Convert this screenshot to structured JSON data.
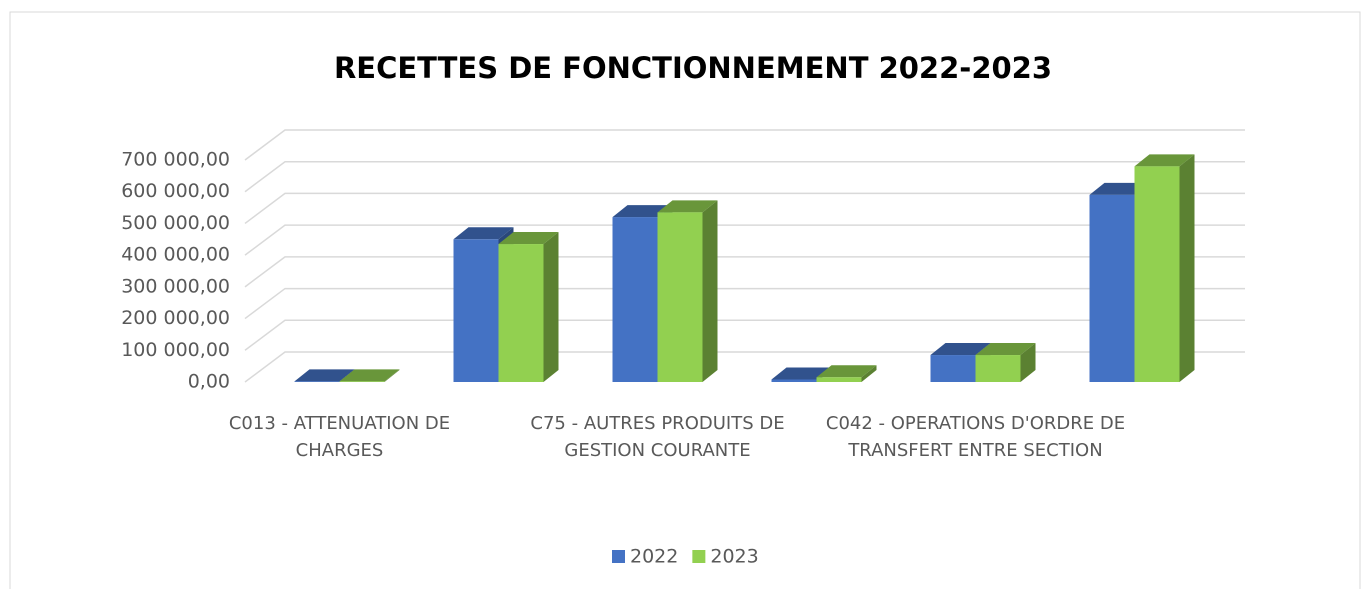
{
  "chart_data": {
    "type": "bar3d",
    "title": "RECETTES DE FONCTIONNEMENT 2022-2023",
    "categories": [
      "C013 - ATTENUATION DE CHARGES",
      null,
      "C75 - AUTRES PRODUITS DE GESTION COURANTE",
      null,
      "C042 - OPERATIONS D'ORDRE DE TRANSFERT ENTRE SECTION",
      null
    ],
    "series": [
      {
        "name": "2022",
        "color": "#4472c4",
        "values": [
          2000,
          450000,
          520000,
          8000,
          85000,
          590000
        ]
      },
      {
        "name": "2023",
        "color": "#92d050",
        "values": [
          2000,
          435000,
          535000,
          15000,
          85000,
          680000
        ]
      }
    ],
    "ylim": [
      0,
      700000
    ],
    "yticks": [
      {
        "value": 0,
        "label": "0,00"
      },
      {
        "value": 100000,
        "label": "100 000,00"
      },
      {
        "value": 200000,
        "label": "200 000,00"
      },
      {
        "value": 300000,
        "label": "300 000,00"
      },
      {
        "value": 400000,
        "label": "400 000,00"
      },
      {
        "value": 500000,
        "label": "500 000,00"
      },
      {
        "value": 600000,
        "label": "600 000,00"
      },
      {
        "value": 700000,
        "label": "700 000,00"
      }
    ],
    "grid": true,
    "legend": "bottom"
  }
}
